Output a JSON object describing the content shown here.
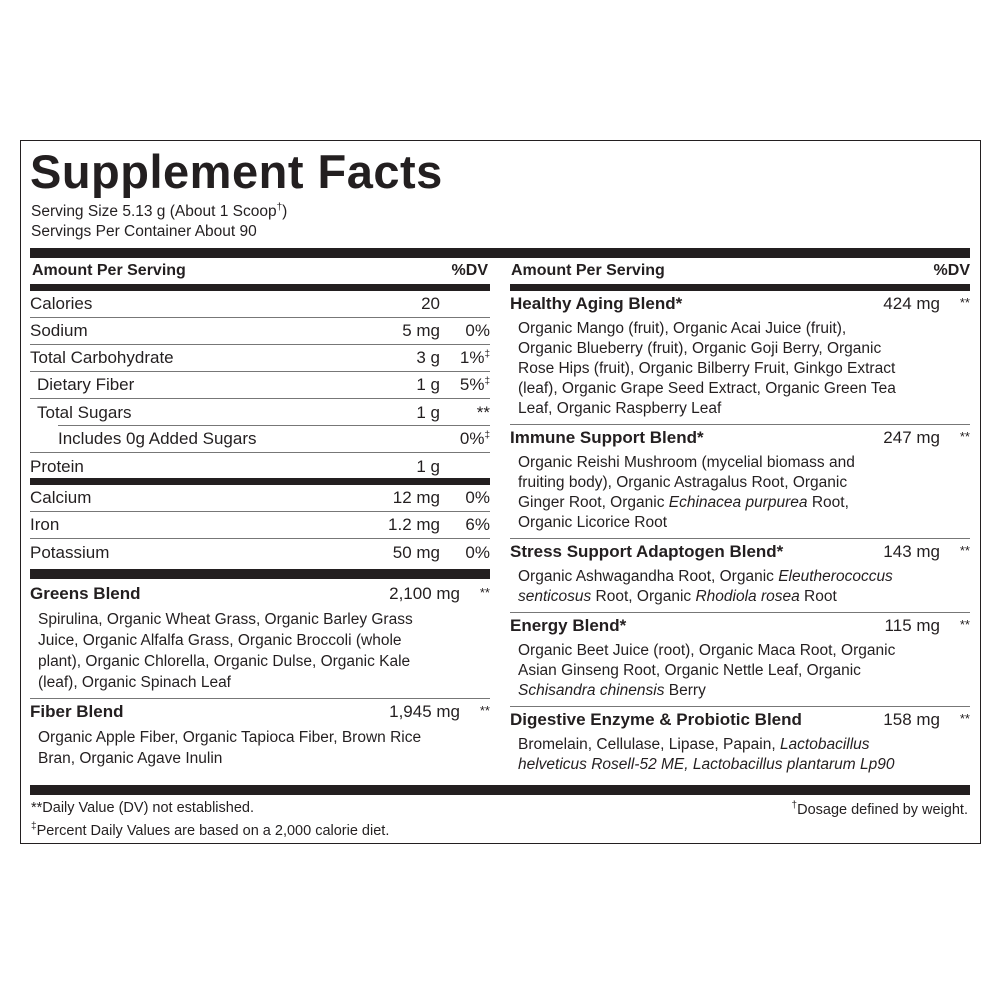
{
  "title": "Supplement Facts",
  "serving_size": "Serving Size 5.13 g (About 1 Scoop",
  "serving_size_mark": "†",
  "serving_size_end": ")",
  "servings_per_container": "Servings Per Container About 90",
  "header": {
    "amount": "Amount Per Serving",
    "dv": "%DV"
  },
  "nutrients": [
    {
      "label": "Calories",
      "amount": "20",
      "dv": "",
      "level": 0
    },
    {
      "label": "Sodium",
      "amount": "5 mg",
      "dv": "0%",
      "level": 0
    },
    {
      "label": "Total Carbohydrate",
      "amount": "3 g",
      "dv": "1%",
      "mark": "‡",
      "level": 0
    },
    {
      "label": "Dietary Fiber",
      "amount": "1 g",
      "dv": "5%",
      "mark": "‡",
      "level": 1
    },
    {
      "label": "Total Sugars",
      "amount": "1 g",
      "dv": "**",
      "level": 1
    },
    {
      "label": "Includes 0g Added Sugars",
      "amount": "",
      "dv": "0%",
      "mark": "‡",
      "level": 2
    },
    {
      "label": "Protein",
      "amount": "1 g",
      "dv": "",
      "level": 0
    }
  ],
  "minerals": [
    {
      "label": "Calcium",
      "amount": "12 mg",
      "dv": "0%"
    },
    {
      "label": "Iron",
      "amount": "1.2 mg",
      "dv": "6%"
    },
    {
      "label": "Potassium",
      "amount": "50 mg",
      "dv": "0%"
    }
  ],
  "left_blends": [
    {
      "name": "Greens Blend",
      "amount": "2,100 mg",
      "dv": "**",
      "lines": [
        [
          {
            "t": "Spirulina, Organic Wheat Grass, Organic Barley Grass"
          }
        ],
        [
          {
            "t": "Juice, Organic Alfalfa Grass, Organic Broccoli (whole"
          }
        ],
        [
          {
            "t": "plant), Organic Chlorella, Organic Dulse, Organic Kale"
          }
        ],
        [
          {
            "t": "(leaf), Organic Spinach Leaf"
          }
        ]
      ]
    },
    {
      "name": "Fiber Blend",
      "amount": "1,945 mg",
      "dv": "**",
      "lines": [
        [
          {
            "t": "Organic Apple Fiber, Organic Tapioca Fiber, Brown Rice"
          }
        ],
        [
          {
            "t": "Bran, Organic Agave Inulin"
          }
        ]
      ]
    }
  ],
  "right_blends": [
    {
      "name": "Healthy Aging Blend*",
      "amount": "424 mg",
      "dv": "**",
      "lines": [
        [
          {
            "t": "Organic Mango (fruit), Organic Acai Juice (fruit),"
          }
        ],
        [
          {
            "t": "Organic Blueberry (fruit), Organic Goji Berry, Organic"
          }
        ],
        [
          {
            "t": "Rose Hips (fruit), Organic Bilberry Fruit, Ginkgo Extract"
          }
        ],
        [
          {
            "t": "(leaf), Organic Grape Seed Extract, Organic Green Tea"
          }
        ],
        [
          {
            "t": "Leaf, Organic Raspberry Leaf"
          }
        ]
      ]
    },
    {
      "name": "Immune Support Blend*",
      "amount": "247 mg",
      "dv": "**",
      "lines": [
        [
          {
            "t": "Organic Reishi Mushroom (mycelial biomass and"
          }
        ],
        [
          {
            "t": "fruiting body), Organic Astragalus Root, Organic"
          }
        ],
        [
          {
            "t": "Ginger Root, Organic "
          },
          {
            "t": "Echinacea purpurea",
            "i": true
          },
          {
            "t": " Root,"
          }
        ],
        [
          {
            "t": "Organic Licorice Root"
          }
        ]
      ]
    },
    {
      "name": "Stress Support Adaptogen Blend*",
      "amount": "143 mg",
      "dv": "**",
      "lines": [
        [
          {
            "t": "Organic Ashwagandha Root, Organic "
          },
          {
            "t": "Eleutherococcus",
            "i": true
          }
        ],
        [
          {
            "t": "senticosus",
            "i": true
          },
          {
            "t": " Root, Organic "
          },
          {
            "t": "Rhodiola rosea",
            "i": true
          },
          {
            "t": " Root"
          }
        ]
      ]
    },
    {
      "name": "Energy Blend*",
      "amount": "115 mg",
      "dv": "**",
      "lines": [
        [
          {
            "t": "Organic Beet Juice (root), Organic Maca Root, Organic"
          }
        ],
        [
          {
            "t": "Asian Ginseng Root, Organic Nettle Leaf, Organic"
          }
        ],
        [
          {
            "t": "Schisandra chinensis",
            "i": true
          },
          {
            "t": " Berry"
          }
        ]
      ]
    },
    {
      "name": "Digestive Enzyme & Probiotic Blend",
      "amount": "158 mg",
      "dv": "**",
      "lines": [
        [
          {
            "t": "Bromelain, Cellulase, Lipase, Papain, "
          },
          {
            "t": "Lactobacillus",
            "i": true
          }
        ],
        [
          {
            "t": "helveticus Rosell-52 ME, Lactobacillus plantarum Lp90",
            "i": true
          }
        ]
      ]
    }
  ],
  "footnotes": {
    "dv_mark": "**",
    "dv_text": "Daily Value (DV) not established.",
    "pdv_mark": "‡",
    "pdv_text": "Percent Daily Values are based on a 2,000 calorie diet.",
    "dosage_mark": "†",
    "dosage_text": "Dosage defined by weight."
  }
}
